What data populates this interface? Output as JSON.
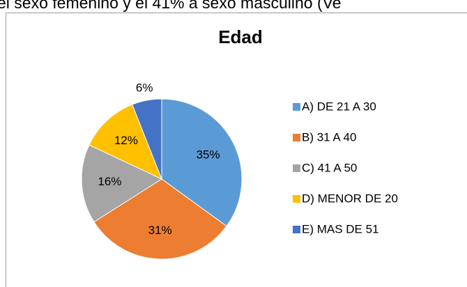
{
  "header_text": "el sexo femenino y el 41% a sexo masculino (Ve",
  "chart_data": {
    "type": "pie",
    "title": "Edad",
    "categories": [
      "A) DE 21 A 30",
      "B) 31 A 40",
      "C) 41 A 50",
      "D) MENOR DE 20",
      "E) MAS DE 51"
    ],
    "values": [
      35,
      31,
      16,
      12,
      6
    ],
    "value_labels": [
      "35%",
      "31%",
      "16%",
      "12%",
      "6%"
    ],
    "colors": [
      "#5b9bd5",
      "#ed7d31",
      "#a5a5a5",
      "#ffc000",
      "#4472c4"
    ],
    "legend": "right"
  }
}
